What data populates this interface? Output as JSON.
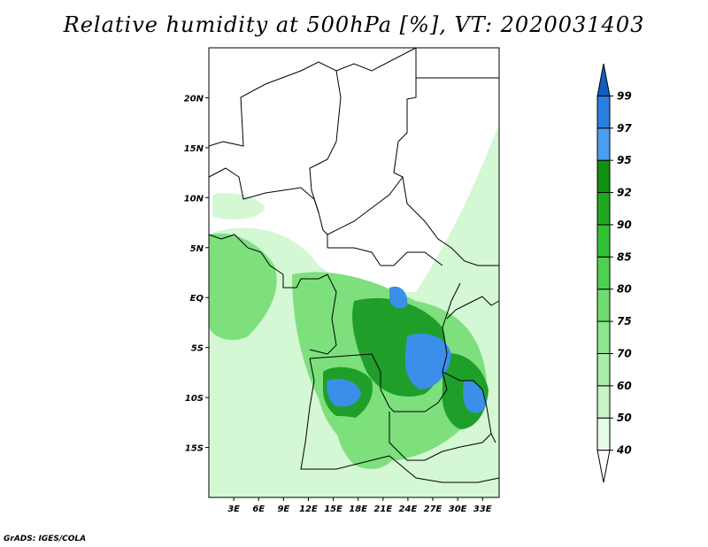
{
  "title": "Relative humidity at 500hPa [%], VT: 2020031403",
  "credit": "GrADS: IGES/COLA",
  "map": {
    "lat_ticks": [
      "20N",
      "15N",
      "10N",
      "5N",
      "EQ",
      "5S",
      "10S",
      "15S"
    ],
    "lat_values": [
      20,
      15,
      10,
      5,
      0,
      -5,
      -10,
      -15
    ],
    "lon_ticks": [
      "3E",
      "6E",
      "9E",
      "12E",
      "15E",
      "18E",
      "21E",
      "24E",
      "27E",
      "30E",
      "33E"
    ],
    "lon_values": [
      3,
      6,
      9,
      12,
      15,
      18,
      21,
      24,
      27,
      30,
      33
    ],
    "lon_range": [
      0,
      35
    ],
    "lat_range": [
      -20,
      25
    ]
  },
  "colorbar": {
    "levels": [
      "40",
      "50",
      "60",
      "70",
      "75",
      "80",
      "85",
      "90",
      "92",
      "95",
      "97",
      "99"
    ],
    "colors": [
      "#ffffff",
      "#e6fce6",
      "#c8f5c8",
      "#a8eda8",
      "#8ce68c",
      "#6edc6e",
      "#50d050",
      "#34c034",
      "#20a820",
      "#129012",
      "#4a9ef0",
      "#2a7ee0",
      "#1060c0"
    ]
  },
  "legend_colors": {
    "fill_light": "#d4f7d4",
    "fill_mid": "#7de07d",
    "fill_dark": "#1f9f2a",
    "fill_blue": "#3b8fe8",
    "border": "#000000"
  }
}
